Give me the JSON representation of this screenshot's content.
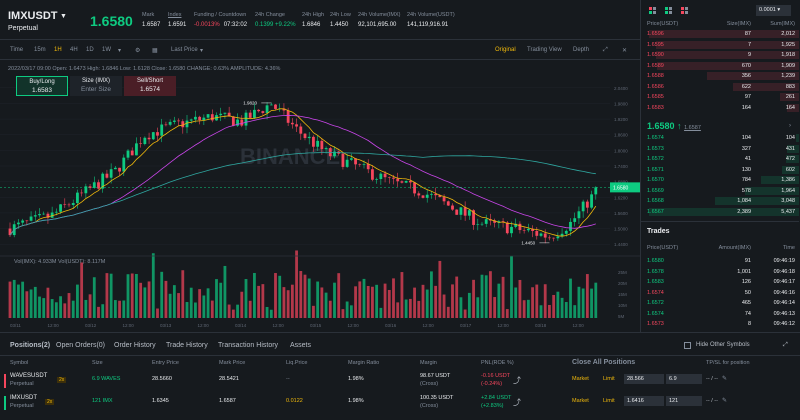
{
  "header": {
    "symbol": "IMXUSDT",
    "contract_type": "Perpetual",
    "last_price": "1.6580",
    "stats": [
      {
        "label": "Mark",
        "value": "1.6587",
        "color": "#eaecef"
      },
      {
        "label": "Index",
        "value": "1.6591",
        "color": "#eaecef"
      },
      {
        "label": "Funding / Countdown",
        "value": "-0.0013%",
        "value2": "07:32:02",
        "color": "#f6465d"
      },
      {
        "label": "24h Change",
        "value": "0.1399 +9.22%",
        "color": "#0ecb81"
      },
      {
        "label": "24h High",
        "value": "1.6846",
        "color": "#eaecef"
      },
      {
        "label": "24h Low",
        "value": "1.4450",
        "color": "#eaecef"
      },
      {
        "label": "24h Volume(IMX)",
        "value": "92,101,695.00",
        "color": "#eaecef"
      },
      {
        "label": "24h Volume(USDT)",
        "value": "141,119,916.91",
        "color": "#eaecef"
      }
    ]
  },
  "toolbar": {
    "left": [
      "Time",
      "15m",
      "1H",
      "4H",
      "1D",
      "1W"
    ],
    "active_interval": "1H",
    "last_price_label": "Last Price",
    "views": [
      "Original",
      "Trading View",
      "Depth"
    ]
  },
  "chart": {
    "ohlc_line": "2022/03/17 09:00  Open: 1.6473  High: 1.6846  Low: 1.6128  Close: 1.6580  CHANGE: 0.63%  AMPLITUDE: 4.36%",
    "buy_label": "Buy/Long",
    "buy_price": "1.6583",
    "size_label": "Size (IMX)",
    "size_placeholder": "Enter Size",
    "sell_label": "Sell/Short",
    "sell_price": "1.6574",
    "high_marker": "1.9820",
    "low_marker": "1.4450",
    "current_price_tag": "1.6580",
    "vol_header": "Vol(IMX): 4.933M  Vol(USDT): 8.117M",
    "price_ticks": [
      "2.0400",
      "1.9800",
      "1.9200",
      "1.8600",
      "1.8000",
      "1.7400",
      "1.6800",
      "1.6200",
      "1.5600",
      "1.5000",
      "1.4400"
    ],
    "vol_ticks": [
      "25M",
      "20M",
      "15M",
      "10M",
      "5M"
    ],
    "x_ticks": [
      "03/11",
      "12:00",
      "03/12",
      "12:00",
      "03/13",
      "12:00",
      "03/14",
      "12:00",
      "03/15",
      "12:00",
      "03/16",
      "12:00",
      "03/17",
      "12:00",
      "03/18",
      "12:00"
    ],
    "watermark": "BINANCE"
  },
  "chart_data": {
    "type": "candlestick",
    "x_range": [
      "03/11",
      "03/17 09:00"
    ],
    "ylim": [
      1.41,
      2.07
    ],
    "last_close": 1.658,
    "high": 1.982,
    "low": 1.445,
    "candles": 140
  },
  "orderbook": {
    "tick_size": "0.0001",
    "headers": [
      "Price(USDT)",
      "Size(IMX)",
      "Sum(IMX)"
    ],
    "asks": [
      [
        "1.6596",
        "87",
        "2,012"
      ],
      [
        "1.6595",
        "7",
        "1,925"
      ],
      [
        "1.6590",
        "9",
        "1,918"
      ],
      [
        "1.6589",
        "670",
        "1,909"
      ],
      [
        "1.6588",
        "356",
        "1,239"
      ],
      [
        "1.6586",
        "622",
        "883"
      ],
      [
        "1.6585",
        "97",
        "261"
      ],
      [
        "1.6583",
        "164",
        "164"
      ]
    ],
    "mid_price": "1.6580",
    "mid_arrow": "↑",
    "mid_mark": "1.6587",
    "bids": [
      [
        "1.6574",
        "104",
        "104"
      ],
      [
        "1.6573",
        "327",
        "431"
      ],
      [
        "1.6572",
        "41",
        "472"
      ],
      [
        "1.6571",
        "130",
        "602"
      ],
      [
        "1.6570",
        "784",
        "1,386"
      ],
      [
        "1.6569",
        "578",
        "1,964"
      ],
      [
        "1.6568",
        "1,084",
        "3,048"
      ],
      [
        "1.6567",
        "2,389",
        "5,437"
      ]
    ]
  },
  "trades": {
    "title": "Trades",
    "headers": [
      "Price(USDT)",
      "Amount(IMX)",
      "Time"
    ],
    "rows": [
      [
        "1.6580",
        "91",
        "09:46:19",
        "green"
      ],
      [
        "1.6578",
        "1,001",
        "09:46:18",
        "green"
      ],
      [
        "1.6583",
        "126",
        "09:46:17",
        "green"
      ],
      [
        "1.6574",
        "50",
        "09:46:16",
        "red"
      ],
      [
        "1.6572",
        "465",
        "09:46:14",
        "green"
      ],
      [
        "1.6574",
        "74",
        "09:46:13",
        "green"
      ],
      [
        "1.6573",
        "8",
        "09:46:12",
        "red"
      ]
    ]
  },
  "positions": {
    "tabs": [
      "Positions(2)",
      "Open Orders(0)",
      "Order History",
      "Trade History",
      "Transaction History",
      "Assets"
    ],
    "hide_other_symbols": "Hide Other Symbols",
    "columns": [
      "Symbol",
      "Size",
      "Entry Price",
      "Mark Price",
      "Liq.Price",
      "Margin Ratio",
      "Margin",
      "PNL(ROE %)",
      "Close All Positions",
      "TP/SL for position"
    ],
    "rows": [
      {
        "symbol": "WAVESUSDT",
        "type": "Perpetual",
        "leverage": "2x",
        "size": "6.9 WAVES",
        "entry": "28.5660",
        "mark": "28.5421",
        "liq": "--",
        "margin_ratio": "1.98%",
        "margin": "98.67 USDT",
        "margin_mode": "(Cross)",
        "pnl": "-0.16 USDT",
        "roe": "(-0.24%)",
        "pnl_color": "#f6465d",
        "market": "Market",
        "limit": "Limit",
        "price_input": "28.566",
        "qty_input": "6.9",
        "tpsl": "-- / --"
      },
      {
        "symbol": "IMXUSDT",
        "type": "Perpetual",
        "leverage": "2x",
        "size": "121 IMX",
        "entry": "1.6345",
        "mark": "1.6587",
        "liq": "0.0122",
        "margin_ratio": "1.98%",
        "margin": "100.35 USDT",
        "margin_mode": "(Cross)",
        "pnl": "+2.84 USDT",
        "roe": "(+2.83%)",
        "pnl_color": "#0ecb81",
        "market": "Market",
        "limit": "Limit",
        "price_input": "1.6416",
        "qty_input": "121",
        "tpsl": "-- / --"
      }
    ]
  },
  "colors": {
    "up": "#0ecb81",
    "down": "#f6465d",
    "accent": "#f0b90b",
    "bg": "#161a1e"
  }
}
